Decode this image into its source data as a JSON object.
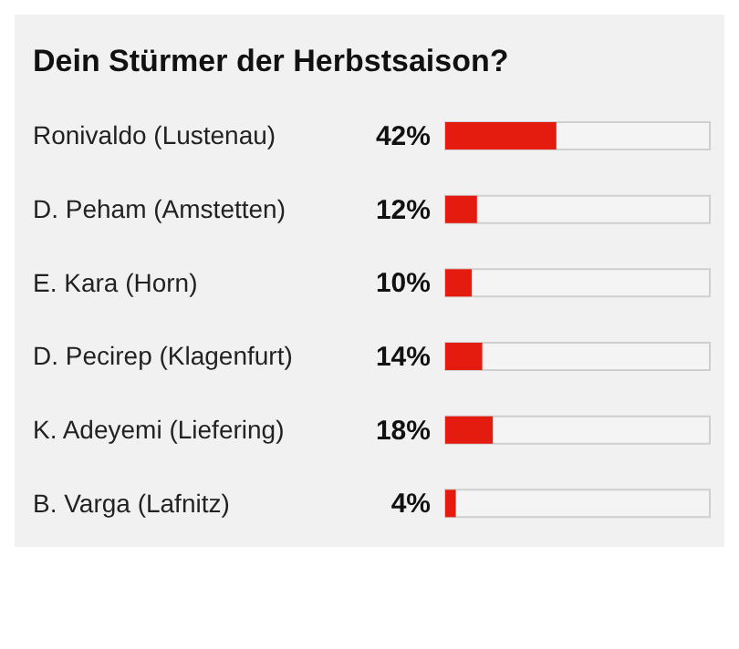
{
  "chart_data": {
    "type": "bar",
    "orientation": "horizontal",
    "title": "Dein Stürmer der Herbstsaison?",
    "categories": [
      "Ronivaldo (Lustenau)",
      "D. Peham (Amstetten)",
      "E. Kara (Horn)",
      "D. Pecirep (Klagenfurt)",
      "K. Adeyemi (Liefering)",
      "B. Varga (Lafnitz)"
    ],
    "values": [
      42,
      12,
      10,
      14,
      18,
      4
    ],
    "value_labels": [
      "42%",
      "12%",
      "10%",
      "14%",
      "18%",
      "4%"
    ],
    "color": "#e41b0f",
    "xlim": [
      0,
      100
    ],
    "tick_labels": "y",
    "grid": false,
    "legend": false
  }
}
